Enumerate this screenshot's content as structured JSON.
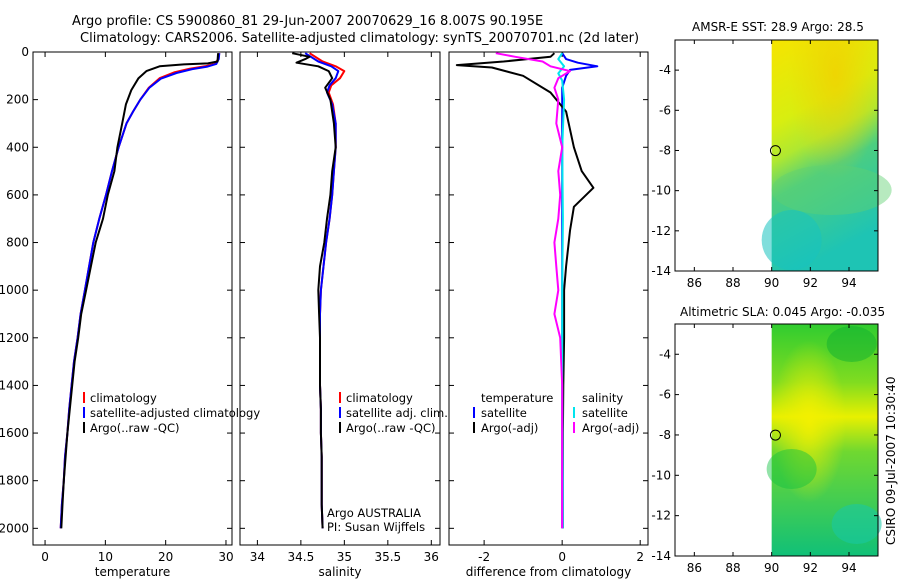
{
  "header": {
    "line1": "Argo profile: CS 5900860_81 29-Jun-2007 20070629_16 8.007S 90.195E",
    "line2": "Climatology: CARS2006. Satellite-adjusted climatology: synTS_20070701.nc (2d later)"
  },
  "colors": {
    "climatology": "#ff0000",
    "satellite": "#0000ff",
    "argo": "#000000",
    "salinity_satellite": "#00e5ee",
    "salinity_argo_adj": "#ff00ff",
    "sst_warm": "#f2e500",
    "sst_cool": "#20c8a0",
    "sla_high": "#f0f000",
    "sla_low": "#10c070"
  },
  "chart_data": [
    {
      "id": "temperature",
      "type": "line",
      "xlabel": "temperature",
      "ylabel": "",
      "xlim": [
        -2,
        31
      ],
      "ylim": [
        2070,
        0
      ],
      "xticks": [
        0,
        10,
        20,
        30
      ],
      "yticks": [
        0,
        200,
        400,
        600,
        800,
        1000,
        1200,
        1400,
        1600,
        1800,
        2000
      ],
      "legend": [
        "climatology",
        "satellite-adjusted climatology",
        "Argo(..raw -QC)"
      ],
      "series": [
        {
          "name": "climatology",
          "color": "#ff0000",
          "points": [
            [
              28.9,
              5
            ],
            [
              28.7,
              30
            ],
            [
              28.2,
              50
            ],
            [
              26.5,
              60
            ],
            [
              24,
              70
            ],
            [
              21.5,
              85
            ],
            [
              19,
              110
            ],
            [
              17.2,
              150
            ],
            [
              15.8,
              200
            ],
            [
              14.6,
              250
            ],
            [
              13.5,
              300
            ],
            [
              12.2,
              400
            ],
            [
              11.1,
              500
            ],
            [
              10.1,
              600
            ],
            [
              9,
              700
            ],
            [
              8,
              800
            ],
            [
              7.3,
              900
            ],
            [
              6.6,
              1000
            ],
            [
              5.9,
              1100
            ],
            [
              5.4,
              1200
            ],
            [
              4.8,
              1300
            ],
            [
              4.4,
              1400
            ],
            [
              4,
              1500
            ],
            [
              3.7,
              1600
            ],
            [
              3.3,
              1700
            ],
            [
              3.1,
              1800
            ],
            [
              2.8,
              1900
            ],
            [
              2.6,
              2000
            ]
          ]
        },
        {
          "name": "satellite-adjusted climatology",
          "color": "#0000ff",
          "points": [
            [
              28.9,
              5
            ],
            [
              28.8,
              30
            ],
            [
              28.4,
              50
            ],
            [
              26.8,
              62
            ],
            [
              24.4,
              72
            ],
            [
              21.8,
              88
            ],
            [
              19.2,
              112
            ],
            [
              17.3,
              150
            ],
            [
              15.8,
              200
            ],
            [
              14.6,
              250
            ],
            [
              13.5,
              300
            ],
            [
              12.2,
              400
            ],
            [
              11.1,
              500
            ],
            [
              10.1,
              600
            ],
            [
              9,
              700
            ],
            [
              8,
              800
            ],
            [
              7.3,
              900
            ],
            [
              6.6,
              1000
            ],
            [
              5.9,
              1100
            ],
            [
              5.4,
              1200
            ],
            [
              4.8,
              1300
            ],
            [
              4.4,
              1400
            ],
            [
              4,
              1500
            ],
            [
              3.7,
              1600
            ],
            [
              3.3,
              1700
            ],
            [
              3.1,
              1800
            ],
            [
              2.8,
              1900
            ],
            [
              2.6,
              2000
            ]
          ]
        },
        {
          "name": "Argo(..raw -QC)",
          "color": "#000000",
          "points": [
            [
              28.7,
              5
            ],
            [
              28.6,
              40
            ],
            [
              27,
              48
            ],
            [
              23,
              52
            ],
            [
              19,
              60
            ],
            [
              16.8,
              80
            ],
            [
              15.5,
              110
            ],
            [
              14.3,
              160
            ],
            [
              13.4,
              220
            ],
            [
              12.8,
              300
            ],
            [
              12,
              400
            ],
            [
              11.5,
              500
            ],
            [
              10.4,
              600
            ],
            [
              9.6,
              700
            ],
            [
              8.4,
              800
            ],
            [
              7.6,
              900
            ],
            [
              6.8,
              1000
            ],
            [
              6,
              1100
            ],
            [
              5.5,
              1200
            ],
            [
              4.9,
              1300
            ],
            [
              4.5,
              1400
            ],
            [
              4.1,
              1500
            ],
            [
              3.7,
              1600
            ],
            [
              3.4,
              1700
            ],
            [
              3.1,
              1800
            ],
            [
              2.9,
              1900
            ],
            [
              2.7,
              2000
            ]
          ]
        }
      ]
    },
    {
      "id": "salinity",
      "type": "line",
      "xlabel": "salinity",
      "xlim": [
        33.8,
        36.1
      ],
      "ylim": [
        2070,
        0
      ],
      "xticks": [
        34,
        34.5,
        35,
        35.5,
        36
      ],
      "xticklabels": [
        "34",
        "34.5",
        "35",
        "35.5",
        "36"
      ],
      "legend": [
        "climatology",
        "satellite adj. clim.",
        "Argo(..raw -QC)"
      ],
      "annotations": [
        "Argo AUSTRALIA",
        "PI: Susan Wijffels"
      ],
      "series": [
        {
          "name": "climatology",
          "color": "#ff0000",
          "points": [
            [
              34.6,
              5
            ],
            [
              34.75,
              40
            ],
            [
              34.9,
              60
            ],
            [
              35.0,
              80
            ],
            [
              34.95,
              110
            ],
            [
              34.85,
              140
            ],
            [
              34.82,
              170
            ],
            [
              34.87,
              220
            ],
            [
              34.9,
              300
            ],
            [
              34.9,
              400
            ],
            [
              34.88,
              500
            ],
            [
              34.86,
              600
            ],
            [
              34.83,
              700
            ],
            [
              34.79,
              800
            ],
            [
              34.76,
              900
            ],
            [
              34.73,
              1000
            ],
            [
              34.72,
              1100
            ],
            [
              34.72,
              1200
            ],
            [
              34.72,
              1300
            ],
            [
              34.72,
              1400
            ],
            [
              34.73,
              1500
            ],
            [
              34.73,
              1600
            ],
            [
              34.74,
              1700
            ],
            [
              34.74,
              1800
            ],
            [
              34.74,
              1900
            ],
            [
              34.75,
              2000
            ]
          ]
        },
        {
          "name": "satellite adj. clim.",
          "color": "#0000ff",
          "points": [
            [
              34.55,
              5
            ],
            [
              34.7,
              40
            ],
            [
              34.85,
              60
            ],
            [
              34.93,
              80
            ],
            [
              34.9,
              110
            ],
            [
              34.83,
              140
            ],
            [
              34.8,
              170
            ],
            [
              34.86,
              220
            ],
            [
              34.9,
              300
            ],
            [
              34.9,
              400
            ],
            [
              34.88,
              500
            ],
            [
              34.86,
              600
            ],
            [
              34.83,
              700
            ],
            [
              34.79,
              800
            ],
            [
              34.76,
              900
            ],
            [
              34.73,
              1000
            ],
            [
              34.72,
              1100
            ],
            [
              34.72,
              1200
            ],
            [
              34.72,
              1300
            ],
            [
              34.72,
              1400
            ],
            [
              34.73,
              1500
            ],
            [
              34.73,
              1600
            ],
            [
              34.74,
              1700
            ],
            [
              34.74,
              1800
            ],
            [
              34.74,
              1900
            ],
            [
              34.75,
              2000
            ]
          ]
        },
        {
          "name": "Argo(..raw -QC)",
          "color": "#000000",
          "points": [
            [
              34.4,
              5
            ],
            [
              34.6,
              20
            ],
            [
              34.55,
              30
            ],
            [
              34.45,
              45
            ],
            [
              34.7,
              60
            ],
            [
              34.82,
              80
            ],
            [
              34.86,
              110
            ],
            [
              34.78,
              150
            ],
            [
              34.84,
              200
            ],
            [
              34.88,
              300
            ],
            [
              34.9,
              400
            ],
            [
              34.86,
              500
            ],
            [
              34.84,
              600
            ],
            [
              34.8,
              700
            ],
            [
              34.77,
              800
            ],
            [
              34.72,
              900
            ],
            [
              34.7,
              1000
            ],
            [
              34.71,
              1100
            ],
            [
              34.72,
              1200
            ],
            [
              34.72,
              1300
            ],
            [
              34.72,
              1400
            ],
            [
              34.73,
              1500
            ],
            [
              34.73,
              1600
            ],
            [
              34.74,
              1700
            ],
            [
              34.74,
              1800
            ],
            [
              34.74,
              1900
            ],
            [
              34.75,
              2000
            ]
          ]
        }
      ]
    },
    {
      "id": "difference",
      "type": "line",
      "xlabel": "difference from climatology",
      "xlim": [
        -2.9,
        2.2
      ],
      "ylim": [
        2070,
        0
      ],
      "xticks": [
        -2,
        0,
        2
      ],
      "legend_temperature_header": "temperature",
      "legend_salinity_header": "salinity",
      "legend": [
        "satellite",
        "Argo(-adj)",
        "satellite",
        "Argo(-adj)"
      ],
      "series": [
        {
          "name": "temperature satellite",
          "color": "#0000ff",
          "points": [
            [
              0,
              5
            ],
            [
              0.1,
              30
            ],
            [
              0.4,
              45
            ],
            [
              0.9,
              60
            ],
            [
              0.2,
              75
            ],
            [
              0.1,
              100
            ],
            [
              0,
              150
            ],
            [
              0,
              300
            ],
            [
              0,
              500
            ],
            [
              0,
              2000
            ]
          ]
        },
        {
          "name": "temperature Argo(-adj)",
          "color": "#000000",
          "points": [
            [
              -0.2,
              5
            ],
            [
              -0.3,
              20
            ],
            [
              -1.5,
              40
            ],
            [
              -2.7,
              55
            ],
            [
              -1.8,
              65
            ],
            [
              -1.0,
              100
            ],
            [
              -0.3,
              170
            ],
            [
              0.1,
              250
            ],
            [
              0.3,
              400
            ],
            [
              0.5,
              500
            ],
            [
              0.8,
              570
            ],
            [
              0.3,
              650
            ],
            [
              0.2,
              750
            ],
            [
              0.1,
              900
            ],
            [
              0.05,
              1000
            ],
            [
              0.05,
              1200
            ],
            [
              0.03,
              1400
            ],
            [
              0.02,
              1600
            ],
            [
              0.02,
              1800
            ],
            [
              0.02,
              2000
            ]
          ]
        },
        {
          "name": "salinity satellite",
          "color": "#00e5ee",
          "points": [
            [
              0,
              5
            ],
            [
              -0.1,
              30
            ],
            [
              0.05,
              60
            ],
            [
              -0.1,
              90
            ],
            [
              0,
              120
            ],
            [
              0.05,
              200
            ],
            [
              0,
              400
            ],
            [
              0.02,
              700
            ],
            [
              0,
              1000
            ],
            [
              0,
              1400
            ],
            [
              0.02,
              1800
            ],
            [
              0.02,
              2000
            ]
          ]
        },
        {
          "name": "salinity Argo(-adj)",
          "color": "#ff00ff",
          "points": [
            [
              -1.7,
              5
            ],
            [
              -1.2,
              20
            ],
            [
              -0.5,
              40
            ],
            [
              -0.3,
              60
            ],
            [
              0.2,
              80
            ],
            [
              -0.1,
              110
            ],
            [
              -0.2,
              150
            ],
            [
              -0.1,
              200
            ],
            [
              -0.15,
              300
            ],
            [
              0,
              400
            ],
            [
              -0.1,
              500
            ],
            [
              -0.05,
              600
            ],
            [
              -0.1,
              700
            ],
            [
              -0.2,
              800
            ],
            [
              -0.15,
              900
            ],
            [
              -0.1,
              1000
            ],
            [
              -0.2,
              1100
            ],
            [
              -0.05,
              1200
            ],
            [
              0,
              1400
            ],
            [
              0,
              1800
            ],
            [
              0,
              2000
            ]
          ]
        }
      ]
    },
    {
      "id": "sst_map",
      "type": "heatmap",
      "title": "AMSR-E SST: 28.9 Argo: 28.5",
      "xlim": [
        85,
        95.5
      ],
      "ylim": [
        -14,
        -2.5
      ],
      "xticks": [
        86,
        88,
        90,
        92,
        94
      ],
      "yticks": [
        -4,
        -6,
        -8,
        -10,
        -12,
        -14
      ],
      "data_xlim": [
        90,
        95.5
      ],
      "argo_position": {
        "lon": 90.195,
        "lat": -8.007
      }
    },
    {
      "id": "sla_map",
      "type": "heatmap",
      "title": "Altimetric SLA: 0.045 Argo: -0.035",
      "xlim": [
        85,
        95.5
      ],
      "ylim": [
        -14,
        -2.5
      ],
      "xticks": [
        86,
        88,
        90,
        92,
        94
      ],
      "yticks": [
        -4,
        -6,
        -8,
        -10,
        -12,
        -14
      ],
      "data_xlim": [
        90,
        95.5
      ],
      "argo_position": {
        "lon": 90.195,
        "lat": -8.007
      }
    }
  ],
  "side_label": "CSIRO 09-Jul-2007 10:30:40"
}
